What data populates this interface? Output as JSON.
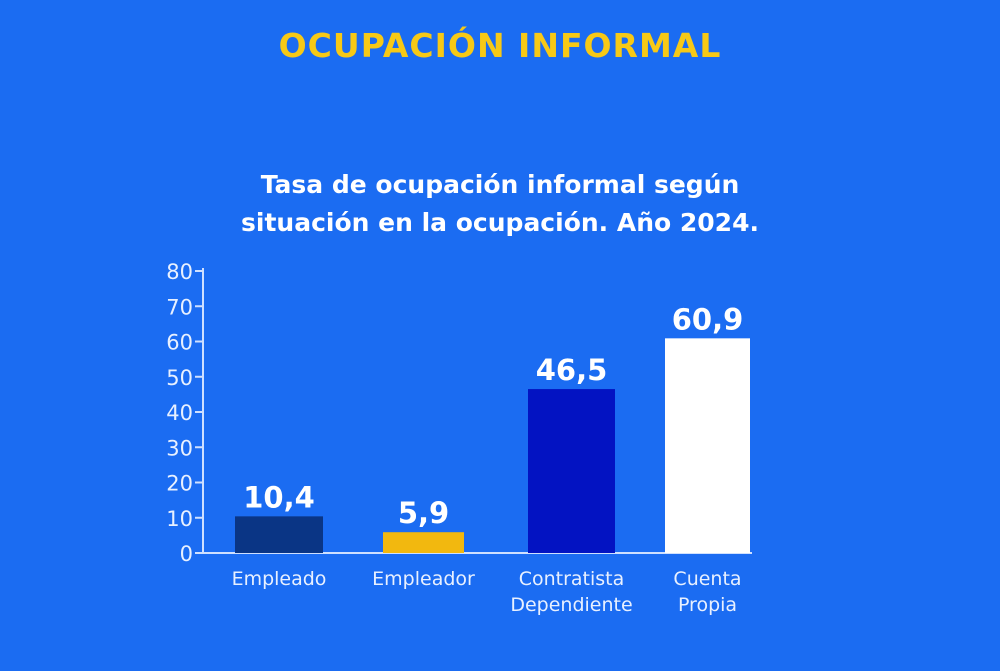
{
  "header": {
    "title": "OCUPACIÓN INFORMAL",
    "title_color": "#f7c916",
    "background_color": "#1b6cf2"
  },
  "chart_data": {
    "type": "bar",
    "title": "Tasa de ocupación informal según situación en la ocupación. Año 2024.",
    "title_lines": [
      "Tasa de ocupación informal según",
      "situación en la ocupación. Año 2024."
    ],
    "categories": [
      [
        "Empleado"
      ],
      [
        "Empleador"
      ],
      [
        "Contratista",
        "Dependiente"
      ],
      [
        "Cuenta",
        "Propia"
      ]
    ],
    "values": [
      10.4,
      5.9,
      46.5,
      60.9
    ],
    "value_labels": [
      "10,4",
      "5,9",
      "46,5",
      "60,9"
    ],
    "bar_colors": [
      "#0a3585",
      "#f2b80f",
      "#0313c2",
      "#ffffff"
    ],
    "ylim": [
      0,
      80
    ],
    "yticks": [
      0,
      10,
      20,
      30,
      40,
      50,
      60,
      70,
      80
    ],
    "xlabel": "",
    "ylabel": "",
    "grid": false,
    "legend": "none"
  }
}
